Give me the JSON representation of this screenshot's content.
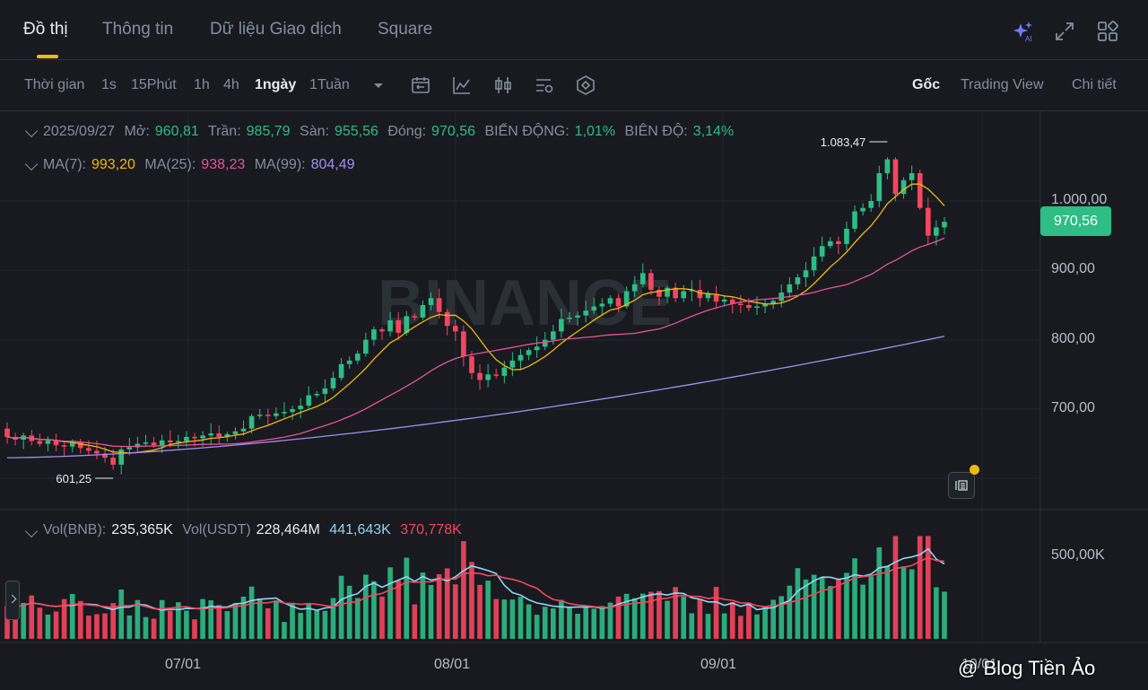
{
  "tabs": {
    "items": [
      {
        "label": "Đồ thị",
        "active": true
      },
      {
        "label": "Thông tin",
        "active": false
      },
      {
        "label": "Dữ liệu Giao dịch",
        "active": false
      },
      {
        "label": "Square",
        "active": false
      }
    ],
    "ai_badge": "AI"
  },
  "toolbar": {
    "time_label": "Thời gian",
    "intervals": [
      {
        "label": "1s",
        "active": false
      },
      {
        "label": "15Phút",
        "active": false
      },
      {
        "label": "1h",
        "active": false
      },
      {
        "label": "4h",
        "active": false
      },
      {
        "label": "1ngày",
        "active": true
      },
      {
        "label": "1Tuần",
        "active": false
      }
    ],
    "views": [
      {
        "label": "Gốc",
        "active": true
      },
      {
        "label": "Trading View",
        "active": false
      },
      {
        "label": "Chi tiết",
        "active": false
      }
    ]
  },
  "ohlc": {
    "date": "2025/09/27",
    "open_label": "Mở:",
    "open": "960,81",
    "high_label": "Trần:",
    "high": "985,79",
    "low_label": "Sàn:",
    "low": "955,56",
    "close_label": "Đóng:",
    "close": "970,56",
    "change_label": "BIẾN ĐỘNG:",
    "change": "1,01%",
    "amplitude_label": "BIÊN ĐỘ:",
    "amplitude": "3,14%"
  },
  "ma": {
    "ma7_label": "MA(7):",
    "ma7": "993,20",
    "ma25_label": "MA(25):",
    "ma25": "938,23",
    "ma99_label": "MA(99):",
    "ma99": "804,49"
  },
  "volume": {
    "vol_bnb_label": "Vol(BNB):",
    "vol_bnb": "235,365K",
    "vol_usdt_label": "Vol(USDT)",
    "vol_usdt": "228,464M",
    "ma_a": "441,643K",
    "ma_b": "370,778K"
  },
  "price_axis": {
    "labels": [
      "1.000,00",
      "900,00",
      "800,00",
      "700,00"
    ],
    "current": "970,56",
    "high_marker": "1.083,47",
    "low_marker": "601,25"
  },
  "volume_axis": {
    "labels": [
      "500,00K"
    ]
  },
  "time_axis": {
    "labels": [
      "07/01",
      "08/01",
      "09/01",
      "10/01"
    ]
  },
  "watermark": "BINANCE",
  "credit": "@ Blog Tiền Ảo",
  "colors": {
    "up": "#2ebd85",
    "down": "#f6465d",
    "ma7": "#f0b90b",
    "ma25": "#e8519a",
    "ma99": "#a58df0",
    "accent": "#f0b90b",
    "vol_ma_a": "#8fd3f4",
    "vol_ma_b": "#f6465d"
  },
  "chart_data": {
    "type": "candlestick",
    "symbol_quote": "USDT",
    "interval": "1ngày",
    "price_range": [
      560,
      1100
    ],
    "volume_range": [
      0,
      700000
    ],
    "start_price": 672,
    "close_path": [
      660,
      656,
      662,
      654,
      650,
      655,
      648,
      646,
      652,
      644,
      640,
      636,
      630,
      620,
      642,
      645,
      650,
      652,
      648,
      655,
      652,
      654,
      660,
      658,
      662,
      665,
      660,
      664,
      668,
      672,
      690,
      692,
      690,
      694,
      696,
      700,
      705,
      720,
      722,
      730,
      745,
      765,
      770,
      780,
      800,
      815,
      812,
      828,
      810,
      834,
      832,
      850,
      860,
      840,
      820,
      812,
      776,
      752,
      742,
      750,
      748,
      760,
      770,
      778,
      785,
      790,
      800,
      812,
      830,
      832,
      835,
      842,
      848,
      852,
      860,
      848,
      870,
      880,
      896,
      872,
      862,
      875,
      860,
      870,
      872,
      860,
      866,
      855,
      858,
      852,
      850,
      846,
      848,
      852,
      856,
      868,
      880,
      890,
      900,
      920,
      935,
      942,
      938,
      960,
      985,
      990,
      1000,
      1040,
      1060,
      1010,
      1030,
      1040,
      990,
      950,
      962,
      970
    ],
    "overlays": [
      "MA(7)",
      "MA(25)",
      "MA(99)"
    ],
    "volume_overlays": [
      "441,643K",
      "370,778K"
    ]
  }
}
